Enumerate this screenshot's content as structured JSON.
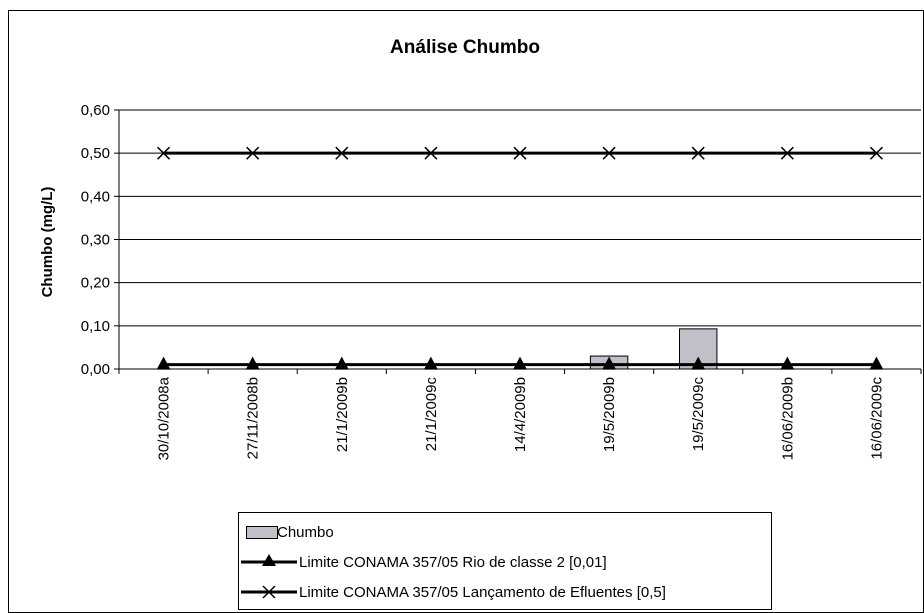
{
  "chart_data": {
    "type": "bar",
    "title": "Análise Chumbo",
    "xlabel": "",
    "ylabel": "Chumbo (mg/L)",
    "ylim": [
      0,
      0.6
    ],
    "yticks": [
      "0,00",
      "0,10",
      "0,20",
      "0,30",
      "0,40",
      "0,50",
      "0,60"
    ],
    "categories": [
      "30/10/2008a",
      "27/11/2008b",
      "21/1/2009b",
      "21/1/2009c",
      "14/4/2009b",
      "19/5/2009b",
      "19/5/2009c",
      "16/06/2009b",
      "16/06/2009c"
    ],
    "series": [
      {
        "name": "Chumbo",
        "type": "bar",
        "color": "#c0c0c8",
        "values": [
          0,
          0,
          0,
          0,
          0,
          0.03,
          0.093,
          0,
          0
        ]
      },
      {
        "name": "Limite CONAMA 357/05 Rio de classe 2 [0,01]",
        "type": "line",
        "marker": "triangle",
        "color": "#000000",
        "values": [
          0.01,
          0.01,
          0.01,
          0.01,
          0.01,
          0.01,
          0.01,
          0.01,
          0.01
        ]
      },
      {
        "name": "Limite CONAMA 357/05 Lançamento de Efluentes [0,5]",
        "type": "line",
        "marker": "x",
        "color": "#000000",
        "values": [
          0.5,
          0.5,
          0.5,
          0.5,
          0.5,
          0.5,
          0.5,
          0.5,
          0.5
        ]
      }
    ],
    "grid": true,
    "legend_position": "bottom"
  }
}
